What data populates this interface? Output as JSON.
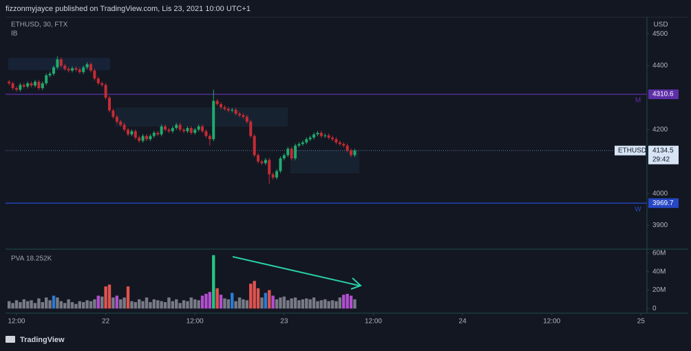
{
  "header": {
    "publisher": "fizzonmyjayce published on TradingView.com, Lis 23, 2021 10:00 UTC+1"
  },
  "chart_data": [
    {
      "type": "candlestick",
      "title": "ETHUSD, 30, FTX",
      "indicator": "IB",
      "currency": "USD",
      "x": [
        11,
        11.5,
        12,
        12.5,
        13,
        13.5,
        14,
        14.5,
        15,
        15.5,
        16,
        16.5,
        17,
        17.5,
        18,
        18.5,
        19,
        19.5,
        20,
        20.5,
        21,
        21.5,
        22,
        22.5,
        23,
        23.5,
        24,
        24.5,
        25,
        25.5,
        26,
        26.5,
        27,
        27.5,
        28,
        28.5,
        29,
        29.5,
        30,
        30.5,
        31,
        31.5,
        32,
        32.5,
        33,
        33.5,
        34,
        34.5,
        35,
        35.5,
        36,
        36.5,
        37,
        37.5,
        38,
        38.5,
        39,
        39.5,
        40,
        40.5,
        41,
        41.5,
        42,
        42.5,
        43,
        43.5,
        44,
        44.5,
        45,
        45.5,
        46,
        46.5,
        47,
        47.5,
        48,
        48.5,
        49,
        49.5,
        50,
        50.5,
        51,
        51.5,
        52,
        52.5,
        53,
        53.5,
        54,
        54.5,
        55,
        55.5,
        56,
        56.5,
        57,
        57.5
      ],
      "xlim": [
        10.52,
        96.8
      ],
      "xticks": [
        {
          "value": 12,
          "label": "12:00"
        },
        {
          "value": 24,
          "label": "22"
        },
        {
          "value": 36,
          "label": "12:00"
        },
        {
          "value": 48,
          "label": "23"
        },
        {
          "value": 60,
          "label": "12:00"
        },
        {
          "value": 72,
          "label": "24"
        },
        {
          "value": 84,
          "label": "12:00"
        },
        {
          "value": 96,
          "label": "25"
        }
      ],
      "open": [
        4350,
        4345,
        4330,
        4325,
        4340,
        4335,
        4345,
        4338,
        4350,
        4330,
        4345,
        4370,
        4375,
        4395,
        4420,
        4400,
        4390,
        4385,
        4392,
        4388,
        4380,
        4395,
        4405,
        4385,
        4360,
        4345,
        4340,
        4300,
        4260,
        4240,
        4225,
        4215,
        4200,
        4185,
        4195,
        4175,
        4165,
        4180,
        4170,
        4180,
        4190,
        4185,
        4210,
        4200,
        4195,
        4205,
        4215,
        4200,
        4195,
        4205,
        4190,
        4200,
        4210,
        4195,
        4180,
        4170,
        4290,
        4280,
        4270,
        4265,
        4260,
        4262,
        4250,
        4245,
        4240,
        4225,
        4180,
        4120,
        4100,
        4095,
        4105,
        4060,
        4050,
        4070,
        4110,
        4120,
        4140,
        4110,
        4150,
        4155,
        4160,
        4170,
        4175,
        4185,
        4190,
        4180,
        4182,
        4175,
        4170,
        4160,
        4155,
        4150,
        4135,
        4120
      ],
      "high": [
        4356,
        4351,
        4336,
        4346,
        4346,
        4351,
        4351,
        4356,
        4356,
        4351,
        4376,
        4381,
        4401,
        4430,
        4426,
        4406,
        4396,
        4398,
        4398,
        4394,
        4401,
        4411,
        4411,
        4391,
        4366,
        4351,
        4346,
        4306,
        4266,
        4246,
        4231,
        4221,
        4206,
        4201,
        4201,
        4181,
        4186,
        4186,
        4186,
        4196,
        4196,
        4216,
        4216,
        4206,
        4211,
        4221,
        4221,
        4206,
        4211,
        4211,
        4206,
        4216,
        4216,
        4201,
        4186,
        4325,
        4296,
        4286,
        4276,
        4271,
        4268,
        4268,
        4256,
        4251,
        4246,
        4231,
        4186,
        4126,
        4106,
        4111,
        4111,
        4066,
        4076,
        4116,
        4126,
        4146,
        4146,
        4156,
        4161,
        4166,
        4176,
        4181,
        4191,
        4196,
        4196,
        4188,
        4188,
        4181,
        4176,
        4166,
        4161,
        4156,
        4141,
        4140
      ],
      "low": [
        4339,
        4324,
        4319,
        4319,
        4329,
        4329,
        4332,
        4332,
        4324,
        4324,
        4339,
        4364,
        4369,
        4389,
        4394,
        4384,
        4379,
        4379,
        4382,
        4374,
        4374,
        4389,
        4379,
        4354,
        4339,
        4334,
        4294,
        4254,
        4234,
        4219,
        4209,
        4194,
        4179,
        4179,
        4169,
        4159,
        4159,
        4164,
        4164,
        4174,
        4179,
        4179,
        4194,
        4189,
        4189,
        4199,
        4194,
        4189,
        4189,
        4184,
        4184,
        4194,
        4189,
        4174,
        4150,
        4164,
        4274,
        4264,
        4259,
        4254,
        4254,
        4244,
        4239,
        4234,
        4219,
        4174,
        4114,
        4094,
        4089,
        4089,
        4030,
        4044,
        4044,
        4064,
        4104,
        4114,
        4104,
        4104,
        4144,
        4149,
        4154,
        4164,
        4169,
        4179,
        4174,
        4174,
        4169,
        4164,
        4154,
        4149,
        4144,
        4129,
        4114,
        4114
      ],
      "close": [
        4345,
        4330,
        4325,
        4340,
        4335,
        4345,
        4338,
        4350,
        4330,
        4345,
        4370,
        4375,
        4395,
        4420,
        4400,
        4390,
        4385,
        4392,
        4388,
        4380,
        4395,
        4405,
        4385,
        4360,
        4345,
        4340,
        4300,
        4260,
        4240,
        4225,
        4215,
        4200,
        4185,
        4195,
        4175,
        4165,
        4180,
        4170,
        4180,
        4190,
        4185,
        4210,
        4200,
        4195,
        4205,
        4215,
        4200,
        4195,
        4205,
        4190,
        4200,
        4210,
        4195,
        4180,
        4170,
        4290,
        4280,
        4270,
        4265,
        4260,
        4262,
        4250,
        4245,
        4240,
        4225,
        4180,
        4120,
        4100,
        4095,
        4105,
        4060,
        4050,
        4070,
        4110,
        4120,
        4140,
        4110,
        4150,
        4155,
        4160,
        4170,
        4175,
        4185,
        4190,
        4180,
        4182,
        4175,
        4170,
        4160,
        4155,
        4150,
        4135,
        4120,
        4134.5
      ],
      "up_color": "#1fab6e",
      "down_color": "#c62b34",
      "ylim": [
        3830,
        4552
      ],
      "yticks": [
        3900,
        4000,
        4200,
        4400,
        4500
      ],
      "levels": [
        {
          "value": 4310.6,
          "tag": "M",
          "color": "#5d2fa8"
        },
        {
          "value": 3969.7,
          "tag": "W",
          "color": "#2747c4"
        }
      ],
      "last": {
        "symbol": "ETHUSD",
        "value": 4134.5,
        "countdown": "29:42"
      }
    },
    {
      "type": "bar",
      "indicator": "PVA",
      "indicator_value": "18.252K",
      "values": [
        8,
        6,
        9,
        7,
        10,
        8,
        9,
        6,
        11,
        7,
        12,
        9,
        14,
        12,
        8,
        6,
        10,
        7,
        5,
        8,
        7,
        9,
        8,
        10,
        14,
        13,
        24,
        26,
        12,
        14,
        10,
        12,
        24,
        8,
        7,
        10,
        8,
        12,
        7,
        10,
        9,
        8,
        7,
        12,
        8,
        10,
        6,
        9,
        8,
        12,
        10,
        9,
        14,
        16,
        18,
        58,
        22,
        15,
        11,
        10,
        17,
        8,
        12,
        10,
        9,
        27,
        30,
        22,
        12,
        17,
        20,
        14,
        10,
        12,
        13,
        9,
        11,
        12,
        9,
        10,
        11,
        10,
        12,
        8,
        9,
        10,
        8,
        9,
        8,
        12,
        15,
        16,
        14,
        10
      ],
      "colors": [
        "#787b86",
        "#787b86",
        "#787b86",
        "#787b86",
        "#787b86",
        "#787b86",
        "#787b86",
        "#787b86",
        "#787b86",
        "#787b86",
        "#787b86",
        "#787b86",
        "#2a7bd5",
        "#787b86",
        "#787b86",
        "#787b86",
        "#787b86",
        "#787b86",
        "#787b86",
        "#787b86",
        "#787b86",
        "#787b86",
        "#787b86",
        "#787b86",
        "#b24fd0",
        "#787b86",
        "#e0534f",
        "#e0534f",
        "#787b86",
        "#b24fd0",
        "#787b86",
        "#787b86",
        "#e0534f",
        "#787b86",
        "#787b86",
        "#787b86",
        "#787b86",
        "#787b86",
        "#787b86",
        "#787b86",
        "#787b86",
        "#787b86",
        "#787b86",
        "#787b86",
        "#787b86",
        "#787b86",
        "#787b86",
        "#787b86",
        "#787b86",
        "#787b86",
        "#787b86",
        "#787b86",
        "#b24fd0",
        "#b24fd0",
        "#b24fd0",
        "#26c281",
        "#e0534f",
        "#b24fd0",
        "#787b86",
        "#787b86",
        "#2a7bd5",
        "#787b86",
        "#787b86",
        "#787b86",
        "#787b86",
        "#e0534f",
        "#e0534f",
        "#e0534f",
        "#787b86",
        "#2a7bd5",
        "#e0534f",
        "#b24fd0",
        "#787b86",
        "#787b86",
        "#787b86",
        "#787b86",
        "#787b86",
        "#787b86",
        "#787b86",
        "#787b86",
        "#787b86",
        "#787b86",
        "#787b86",
        "#787b86",
        "#787b86",
        "#787b86",
        "#787b86",
        "#787b86",
        "#787b86",
        "#787b86",
        "#b24fd0",
        "#b24fd0",
        "#b24fd0",
        "#787b86"
      ],
      "ylim": [
        -5,
        64.5
      ],
      "yticks": [
        {
          "value": 60,
          "label": "60M"
        },
        {
          "value": 40,
          "label": "40M"
        },
        {
          "value": 20,
          "label": "20M"
        },
        0
      ]
    }
  ],
  "footer": {
    "brand": "TradingView"
  }
}
